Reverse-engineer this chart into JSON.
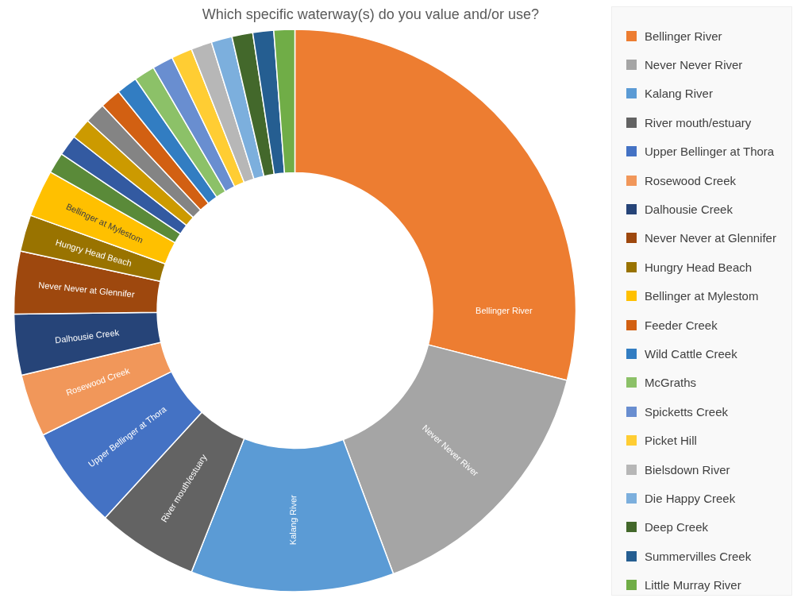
{
  "chart_data": {
    "type": "donut",
    "title": "Which specific waterway(s) do you value and/or use?",
    "categories": [
      "Bellinger River",
      "Never Never River",
      "Kalang River",
      "River mouth/estuary",
      "Upper Bellinger at Thora",
      "Rosewood Creek",
      "Dalhousie Creek",
      "Never Never at Glennifer",
      "Hungry Head Beach",
      "Bellinger at Mylestom",
      null,
      null,
      null,
      null,
      "Feeder Creek",
      "Wild Cattle Creek",
      "McGraths",
      "Spicketts Creek",
      "Picket Hill",
      "Bielsdown River",
      "Die Happy Creek",
      "Deep Creek",
      "Summervilles Creek",
      "Little Murray River"
    ],
    "values": [
      29.0,
      15.3,
      11.7,
      5.8,
      5.9,
      3.6,
      3.5,
      3.6,
      2.1,
      2.7,
      1.2,
      1.2,
      1.2,
      1.2,
      1.2,
      1.2,
      1.2,
      1.2,
      1.2,
      1.2,
      1.2,
      1.2,
      1.2,
      1.2
    ],
    "colors": [
      "#ed7d31",
      "#a5a5a5",
      "#5b9bd5",
      "#636363",
      "#4472c4",
      "#f1975a",
      "#264478",
      "#9e480e",
      "#997300",
      "#ffc000",
      "#5a8a39",
      "#335aa1",
      "#cc9a00",
      "#848484",
      "#d26012",
      "#327dc2",
      "#8cc168",
      "#698ed0",
      "#ffcd33",
      "#b7b7b7",
      "#7cafdd",
      "#43682b",
      "#255e91",
      "#70ad47"
    ],
    "legend": "right"
  }
}
